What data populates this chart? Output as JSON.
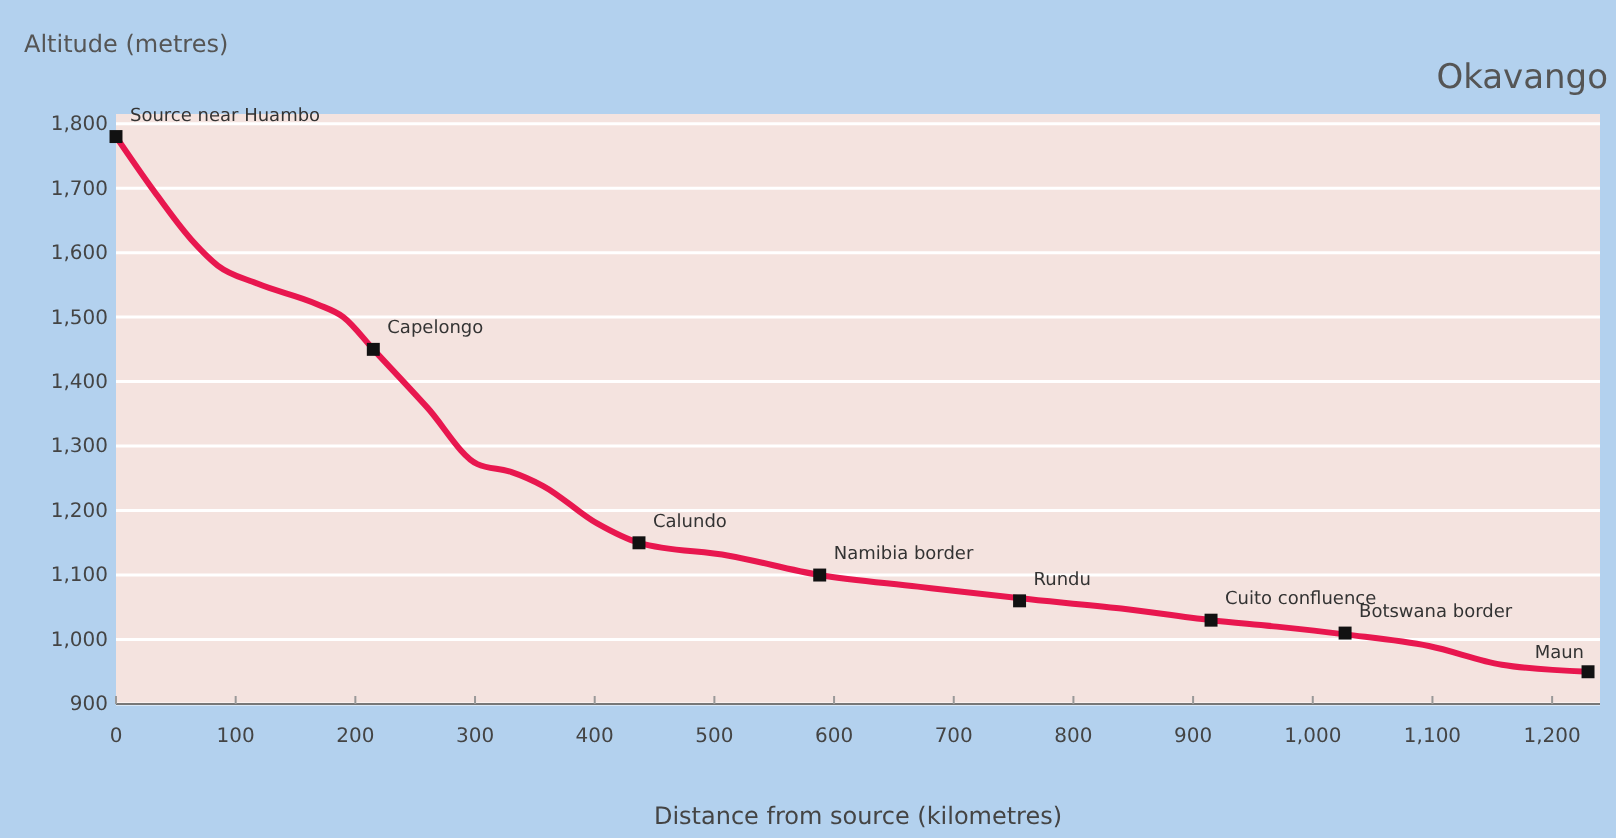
{
  "chart_data": {
    "type": "line",
    "title": "Okavango",
    "xlabel": "Distance from source (kilometres)",
    "ylabel": "Altitude (metres)",
    "xlim": [
      0,
      1240
    ],
    "ylim": [
      900,
      1815
    ],
    "xticks": [
      0,
      100,
      200,
      300,
      400,
      500,
      600,
      700,
      800,
      900,
      {
        "value": 1000,
        "label": "1,000"
      },
      {
        "value": 1100,
        "label": "1,100"
      },
      {
        "value": 1200,
        "label": "1,200"
      }
    ],
    "yticks": [
      900,
      {
        "value": 1000,
        "label": "1,000"
      },
      {
        "value": 1100,
        "label": "1,100"
      },
      {
        "value": 1200,
        "label": "1,200"
      },
      {
        "value": 1300,
        "label": "1,300"
      },
      {
        "value": 1400,
        "label": "1,400"
      },
      {
        "value": 1500,
        "label": "1,500"
      },
      {
        "value": 1600,
        "label": "1,600"
      },
      {
        "value": 1700,
        "label": "1,700"
      },
      {
        "value": 1800,
        "label": "1,800"
      }
    ],
    "grid": "y",
    "marker": "none",
    "line_style": "solid",
    "series": [
      {
        "color": "#e8174f",
        "x": [
          0,
          30,
          63,
          85,
          118,
          168,
          190,
          215,
          260,
          302,
          330,
          357,
          402,
          437,
          512,
          588,
          670,
          755,
          840,
          915,
          970,
          1027,
          1097,
          1158,
          1230
        ],
        "values": [
          1780,
          1700,
          1620,
          1580,
          1552,
          1520,
          1500,
          1450,
          1360,
          1272,
          1260,
          1238,
          1180,
          1150,
          1130,
          1100,
          1082,
          1064,
          1048,
          1030,
          1020,
          1008,
          990,
          961,
          950
        ]
      },
      {
        "type": "scatter",
        "marker": "square",
        "color": "#111111",
        "x": [
          0,
          215,
          437,
          588,
          755,
          915,
          1027,
          1230
        ],
        "values": [
          1780,
          1450,
          1150,
          1100,
          1060,
          1030,
          1010,
          950
        ]
      }
    ],
    "annotations": [
      {
        "text": "Source near Huambo",
        "x": 0,
        "y": 1780
      },
      {
        "text": "Capelongo",
        "x": 215,
        "y": 1450
      },
      {
        "text": "Calundo",
        "x": 437,
        "y": 1150
      },
      {
        "text": "Namibia border",
        "x": 588,
        "y": 1100
      },
      {
        "text": "Rundu",
        "x": 755,
        "y": 1060
      },
      {
        "text": "Cuito confluence",
        "x": 915,
        "y": 1030
      },
      {
        "text": "Botswana border",
        "x": 1027,
        "y": 1010
      },
      {
        "text": "Maun",
        "x": 1230,
        "y": 950
      }
    ]
  }
}
